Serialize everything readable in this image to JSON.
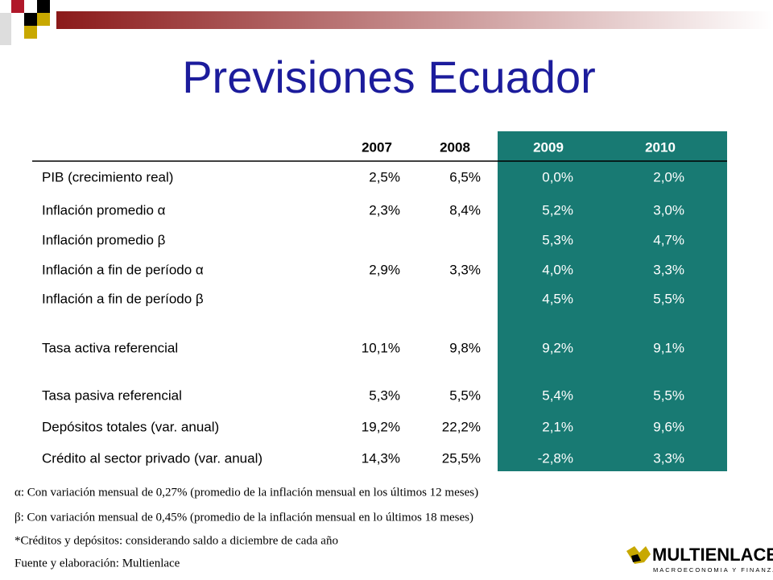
{
  "title": "Previsiones Ecuador",
  "table": {
    "header": [
      "2007",
      "2008",
      "2009",
      "2010"
    ],
    "rows": [
      [
        "PIB (crecimiento real)",
        "2,5%",
        "6,5%",
        "0,0%",
        "2,0%"
      ],
      [
        "Inflación promedio α",
        "2,3%",
        "8,4%",
        "5,2%",
        "3,0%"
      ],
      [
        "Inflación promedio β",
        null,
        null,
        "5,3%",
        "4,7%"
      ],
      [
        "Inflación a fin de período α",
        "2,9%",
        "3,3%",
        "4,0%",
        "3,3%"
      ],
      [
        "Inflación a fin de período β",
        null,
        null,
        "4,5%",
        "5,5%"
      ],
      [
        "Tasa activa referencial",
        "10,1%",
        "9,8%",
        "9,2%",
        "9,1%"
      ],
      [
        "Tasa pasiva referencial",
        "5,3%",
        "5,5%",
        "5,4%",
        "5,5%"
      ],
      [
        "Depósitos totales (var. anual)",
        "19,2%",
        "22,2%",
        "2,1%",
        "9,6%"
      ],
      [
        "Crédito al sector privado (var. anual)",
        "14,3%",
        "25,5%",
        "-2,8%",
        "3,3%"
      ]
    ]
  },
  "notes": [
    "α: Con variación mensual de 0,27% (promedio de la inflación mensual en los últimos 12 meses)",
    "β: Con variación mensual de 0,45% (promedio de la inflación mensual en lo últimos 18 meses)",
    "*Créditos y depósitos: considerando saldo a diciembre de cada año",
    "Fuente y elaboración: Multienlace"
  ],
  "logo": {
    "name": "MULTIENLACE",
    "tagline": "MACROECONOMIA Y FINANZAS"
  }
}
